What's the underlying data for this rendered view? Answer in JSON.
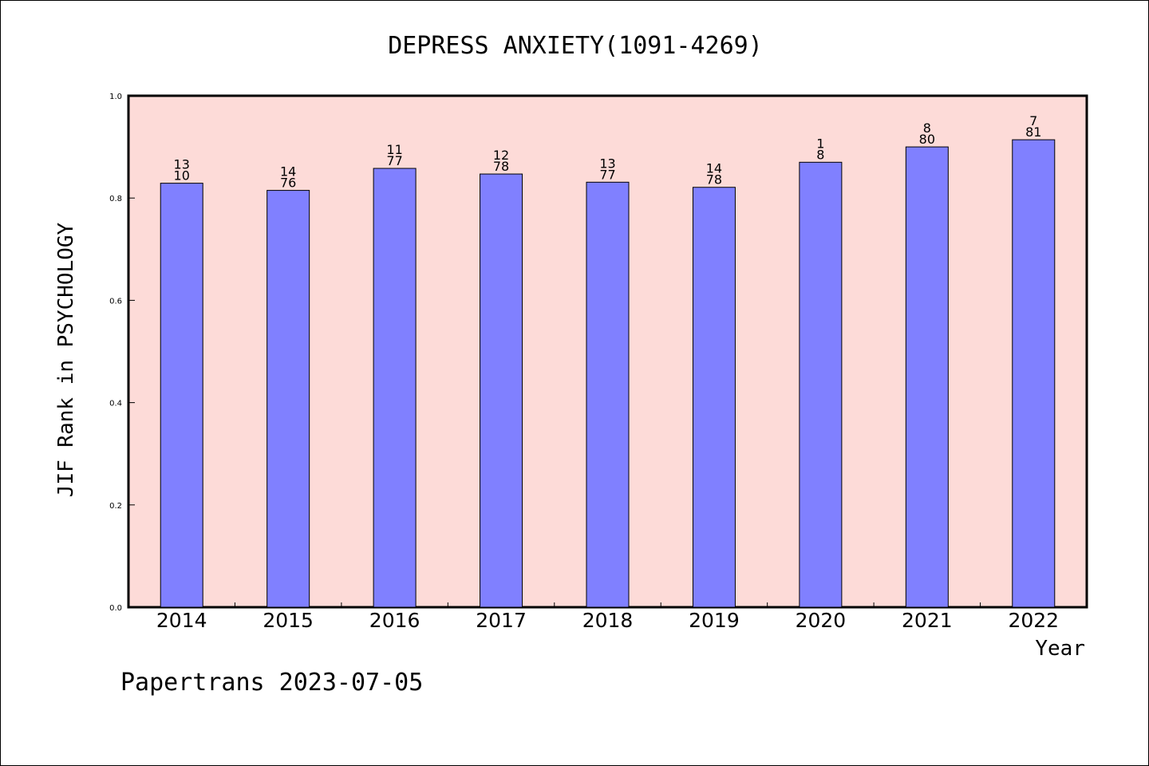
{
  "footer": {
    "text": "Papertrans 2023-07-05"
  },
  "chart_data": {
    "type": "bar",
    "title": "DEPRESS ANXIETY(1091-4269)",
    "xlabel": "Year",
    "ylabel": "JIF Rank in PSYCHOLOGY",
    "categories": [
      "2014",
      "2015",
      "2016",
      "2017",
      "2018",
      "2019",
      "2020",
      "2021",
      "2022"
    ],
    "values": [
      0.829,
      0.815,
      0.858,
      0.847,
      0.831,
      0.821,
      0.87,
      0.9,
      0.914
    ],
    "rank_labels": [
      "13",
      "14",
      "11",
      "12",
      "13",
      "14",
      "1",
      "8",
      "7"
    ],
    "total_labels": [
      "10",
      "76",
      "77",
      "78",
      "77",
      "78",
      "8",
      "80",
      "81"
    ],
    "ylim": [
      0,
      1.0
    ],
    "yticks": [
      "0.0",
      "0.2",
      "0.4",
      "0.6",
      "0.8",
      "1.0"
    ],
    "grid": false,
    "legend": "none",
    "colors": {
      "bar": "#8080ff",
      "plot_bg": "#fddbd8",
      "axis": "#000000"
    }
  }
}
